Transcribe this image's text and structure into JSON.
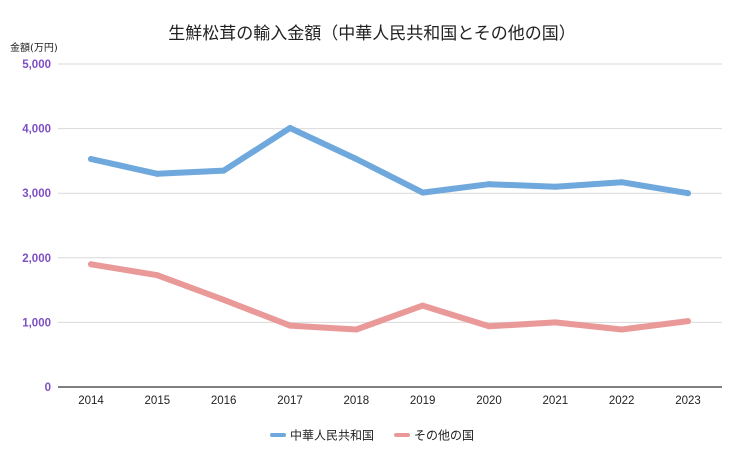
{
  "chart_data": {
    "type": "line",
    "title": "生鮮松茸の輸入金額（中華人民共和国とその他の国）",
    "xlabel": "",
    "ylabel": "金額(万円)",
    "x": [
      "2014",
      "2015",
      "2016",
      "2017",
      "2018",
      "2019",
      "2020",
      "2021",
      "2022",
      "2023"
    ],
    "ylim": [
      0,
      5000
    ],
    "yticks": [
      0,
      1000,
      2000,
      3000,
      4000,
      5000
    ],
    "ytick_labels": [
      "0",
      "1,000",
      "2,000",
      "3,000",
      "4,000",
      "5,000"
    ],
    "grid": true,
    "legend_position": "bottom",
    "series": [
      {
        "name": "中華人民共和国",
        "color": "#6fa8dc",
        "values": [
          3530,
          3300,
          3350,
          4010,
          3530,
          3010,
          3140,
          3100,
          3170,
          3000
        ]
      },
      {
        "name": "その他の国",
        "color": "#ea9999",
        "values": [
          1900,
          1730,
          1350,
          950,
          890,
          1260,
          940,
          1000,
          890,
          1020
        ]
      }
    ],
    "colors": {
      "ytick": "#7e4fc2",
      "grid": "#d9d9d9",
      "axis": "#333333"
    }
  }
}
